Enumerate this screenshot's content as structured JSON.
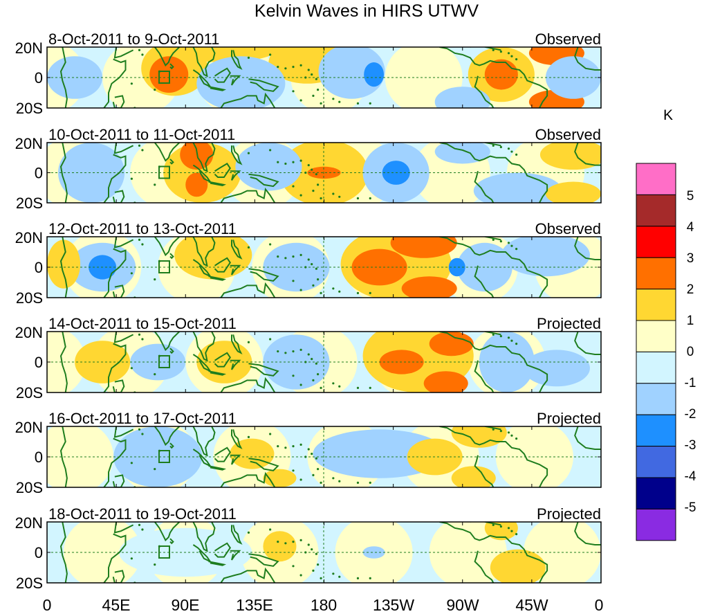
{
  "title": "Kelvin Waves in HIRS UTWV",
  "panels": [
    {
      "date_range": "8-Oct-2011 to 9-Oct-2011",
      "status": "Observed"
    },
    {
      "date_range": "10-Oct-2011 to 11-Oct-2011",
      "status": "Observed"
    },
    {
      "date_range": "12-Oct-2011 to 13-Oct-2011",
      "status": "Observed"
    },
    {
      "date_range": "14-Oct-2011 to 15-Oct-2011",
      "status": "Projected"
    },
    {
      "date_range": "16-Oct-2011 to 17-Oct-2011",
      "status": "Projected"
    },
    {
      "date_range": "18-Oct-2011 to 19-Oct-2011",
      "status": "Projected"
    }
  ],
  "lat_labels": [
    "20N",
    "0",
    "20S"
  ],
  "lon_labels": [
    "0",
    "45E",
    "90E",
    "135E",
    "180",
    "135W",
    "90W",
    "45W",
    "0"
  ],
  "colorbar": {
    "unit": "K",
    "labels": [
      "5",
      "4",
      "3",
      "2",
      "1",
      "0",
      "-1",
      "-2",
      "-3",
      "-4",
      "-5"
    ],
    "colors": [
      "#ff6ec7",
      "#a52a2a",
      "#ff0000",
      "#ff7000",
      "#ffd732",
      "#ffffc8",
      "#d2f5ff",
      "#a0d2ff",
      "#1e90ff",
      "#4169e1",
      "#00008b",
      "#8a2be2"
    ]
  },
  "colors": {
    "coast": "#1e7d1e",
    "pos1": "#ffd732",
    "pos2": "#ff7000",
    "pos3": "#ff0000",
    "neg1": "#a0d2ff",
    "neg2": "#1e90ff",
    "neutral_pos": "#ffffc8",
    "neutral_neg": "#d2f5ff"
  }
}
